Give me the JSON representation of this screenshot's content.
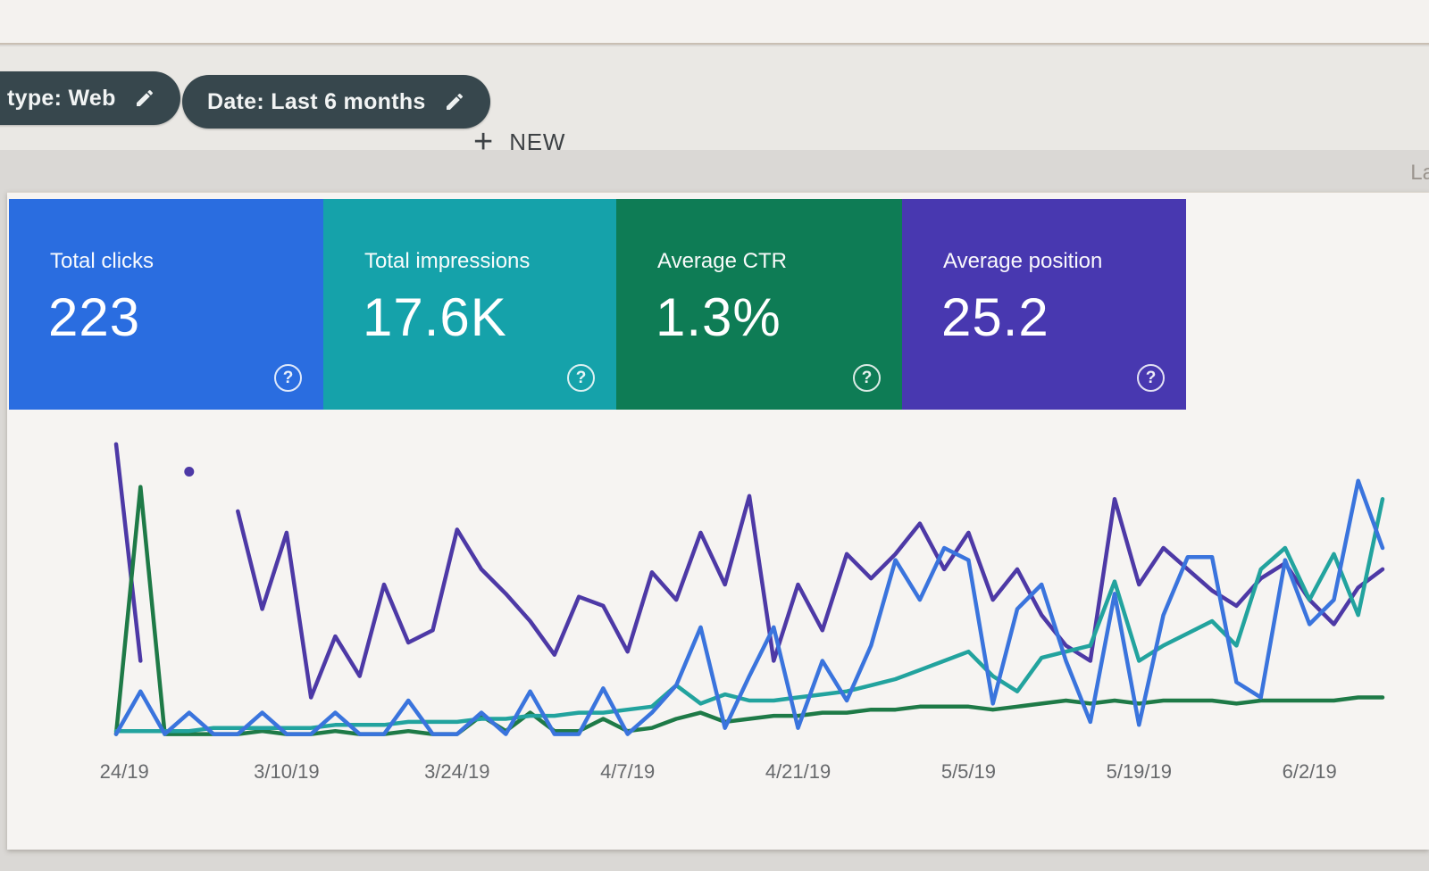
{
  "header": {
    "filter_chips": [
      {
        "label": "type: Web",
        "icon": "pencil-icon"
      },
      {
        "label": "Date: Last 6 months",
        "icon": "pencil-icon"
      }
    ],
    "new_button": {
      "label": "NEW",
      "icon": "plus-icon"
    },
    "partial_right_text": "La"
  },
  "metric_cards": [
    {
      "label": "Total clicks",
      "value": "223",
      "color": "#2a6de0",
      "help_icon": "question-circle-icon"
    },
    {
      "label": "Total impressions",
      "value": "17.6K",
      "color": "#15a2aa",
      "help_icon": "question-circle-icon"
    },
    {
      "label": "Average CTR",
      "value": "1.3%",
      "color": "#0e7c55",
      "help_icon": "question-circle-icon"
    },
    {
      "label": "Average position",
      "value": "25.2",
      "color": "#4838b0",
      "help_icon": "question-circle-icon"
    }
  ],
  "chart_data": {
    "type": "line",
    "title": "",
    "xlabel": "",
    "ylabel": "",
    "legend": "none",
    "grid": false,
    "y_axis_visible": false,
    "ylim": [
      0,
      100
    ],
    "y_scale_note": "no y-axis labels shown on screen; values estimated as percent of plot height",
    "x_tick_labels": [
      "2/24/19",
      "3/10/19",
      "3/24/19",
      "4/7/19",
      "4/21/19",
      "5/5/19",
      "5/19/19",
      "6/2/19"
    ],
    "x_tick_indices": [
      0,
      7,
      14,
      21,
      28,
      35,
      42,
      49
    ],
    "points_per_series": 53,
    "series": [
      {
        "name": "Average position",
        "color": "#4d39a6",
        "values": [
          96,
          25,
          null,
          87,
          null,
          74,
          42,
          67,
          13,
          33,
          20,
          50,
          31,
          35,
          68,
          55,
          47,
          38,
          27,
          46,
          43,
          28,
          54,
          45,
          67,
          50,
          79,
          25,
          50,
          35,
          60,
          52,
          60,
          70,
          55,
          67,
          45,
          55,
          40,
          30,
          25,
          78,
          50,
          62,
          55,
          48,
          43,
          52,
          57,
          45,
          37,
          49,
          55
        ]
      },
      {
        "name": "Average CTR",
        "color": "#1e7a47",
        "values": [
          1,
          82,
          1,
          1,
          1,
          1,
          2,
          1,
          1,
          2,
          1,
          1,
          2,
          1,
          1,
          7,
          2,
          8,
          2,
          2,
          6,
          2,
          3,
          6,
          8,
          5,
          6,
          7,
          7,
          8,
          8,
          9,
          9,
          10,
          10,
          10,
          9,
          10,
          11,
          12,
          11,
          12,
          11,
          12,
          12,
          12,
          11,
          12,
          12,
          12,
          12,
          13,
          13
        ]
      },
      {
        "name": "Total impressions",
        "color": "#22a39e",
        "values": [
          2,
          2,
          2,
          2,
          3,
          3,
          3,
          3,
          3,
          4,
          4,
          4,
          5,
          5,
          5,
          6,
          6,
          7,
          7,
          8,
          8,
          9,
          10,
          17,
          11,
          14,
          12,
          12,
          13,
          14,
          15,
          17,
          19,
          22,
          25,
          28,
          20,
          15,
          26,
          28,
          30,
          51,
          25,
          30,
          34,
          38,
          30,
          55,
          62,
          45,
          60,
          40,
          78
        ]
      },
      {
        "name": "Total clicks",
        "color": "#3a74dd",
        "values": [
          1,
          15,
          1,
          8,
          1,
          1,
          8,
          1,
          1,
          8,
          1,
          1,
          12,
          1,
          1,
          8,
          1,
          15,
          1,
          1,
          16,
          1,
          8,
          17,
          36,
          3,
          20,
          36,
          3,
          25,
          12,
          30,
          58,
          45,
          62,
          58,
          11,
          42,
          50,
          25,
          5,
          47,
          4,
          40,
          59,
          59,
          18,
          13,
          58,
          37,
          45,
          84,
          62
        ]
      }
    ]
  }
}
